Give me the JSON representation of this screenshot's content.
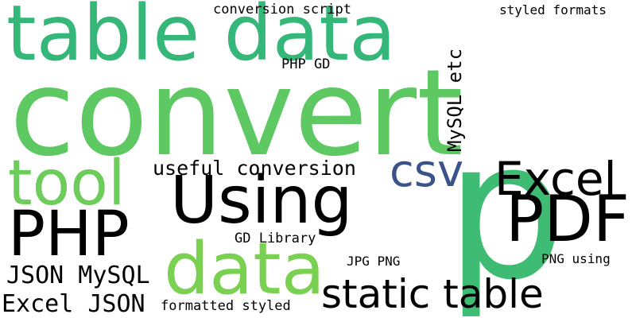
{
  "words": [
    {
      "id": "table-data",
      "text": "table data",
      "color": "#35b779"
    },
    {
      "id": "convert",
      "text": "convert",
      "color": "#5ec962"
    },
    {
      "id": "tool",
      "text": "tool",
      "color": "#6ccd5a"
    },
    {
      "id": "using",
      "text": "Using",
      "color": "#21a685"
    },
    {
      "id": "php",
      "text": "PHP",
      "color": "#2c728e"
    },
    {
      "id": "p",
      "text": "p",
      "color": "#3fbc73"
    },
    {
      "id": "pdf",
      "text": "PDF",
      "color": "#440154"
    },
    {
      "id": "csv",
      "text": "csv",
      "color": "#3b528b"
    },
    {
      "id": "excel",
      "text": "Excel",
      "color": "#472d7b"
    },
    {
      "id": "data",
      "text": "data",
      "color": "#7ad151"
    },
    {
      "id": "static-table",
      "text": "static table",
      "color": "#a8db34"
    },
    {
      "id": "useful-conversion",
      "text": "useful conversion",
      "color": "#482173"
    },
    {
      "id": "json-mysql",
      "text": "JSON MySQL",
      "color": "#86d549"
    },
    {
      "id": "excel-json",
      "text": "Excel JSON",
      "color": "#25838e"
    },
    {
      "id": "mysql-etc",
      "text": "MySQL etc",
      "color": "#31688e"
    },
    {
      "id": "conversion-script",
      "text": "conversion script",
      "color": "#fde725"
    },
    {
      "id": "styled-formats",
      "text": "styled formats",
      "color": "#3fbc73"
    },
    {
      "id": "php-gd",
      "text": "PHP GD",
      "color": "#1f9e89"
    },
    {
      "id": "gd-library",
      "text": "GD Library",
      "color": "#a0da39"
    },
    {
      "id": "jpg-png",
      "text": "JPG PNG",
      "color": "#472c7a"
    },
    {
      "id": "png-using",
      "text": "PNG using",
      "color": "#3e4a89"
    },
    {
      "id": "formatted-styled",
      "text": "formatted styled",
      "color": "#3b528b"
    }
  ]
}
